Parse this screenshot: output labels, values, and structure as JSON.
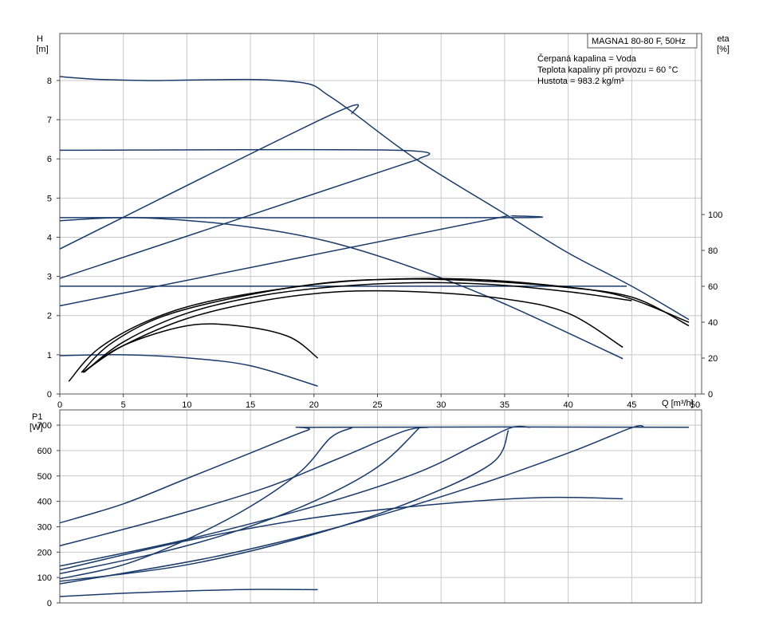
{
  "chart_data": [
    {
      "type": "line",
      "title": "MAGNA1 80-80 F, 50Hz",
      "info_lines": [
        "Čerpaná kapalina = Voda",
        "Teplota kapaliny při provozu = 60 °C",
        "Hustota = 983.2 kg/m³"
      ],
      "y_label_lines": [
        "H",
        "[m]"
      ],
      "y2_label_lines": [
        "eta",
        "[%]"
      ],
      "xlabel": "Q [m³/h]",
      "xlim": [
        0,
        50.5
      ],
      "ylim": [
        0,
        9.2
      ],
      "y2lim": [
        0,
        100
      ],
      "x_ticks": [
        0,
        5,
        10,
        15,
        20,
        25,
        30,
        35,
        40,
        45,
        50
      ],
      "y_ticks": [
        0,
        1,
        2,
        3,
        4,
        5,
        6,
        7,
        8
      ],
      "y2_ticks": [
        0,
        20,
        40,
        60,
        80,
        100
      ],
      "grid": true,
      "head_curves": [
        {
          "color": "#1a3a6b",
          "points": [
            [
              0,
              8.1
            ],
            [
              3,
              8.03
            ],
            [
              7,
              8.0
            ],
            [
              12,
              8.02
            ],
            [
              16,
              8.02
            ],
            [
              19.5,
              7.92
            ],
            [
              21,
              7.65
            ],
            [
              23,
              7.2
            ],
            [
              28,
              6.0
            ],
            [
              35,
              4.6
            ],
            [
              40,
              3.6
            ],
            [
              45,
              2.75
            ],
            [
              49.5,
              1.9
            ]
          ]
        },
        {
          "color": "#1a3a6b",
          "points": [
            [
              0,
              3.7
            ],
            [
              21.3,
              7.12
            ],
            [
              23,
              7.15
            ]
          ]
        },
        {
          "color": "#1a3a6b",
          "points": [
            [
              0,
              6.22
            ],
            [
              26.5,
              6.22
            ],
            [
              28.3,
              6.0
            ]
          ]
        },
        {
          "color": "#1a3a6b",
          "points": [
            [
              0,
              2.95
            ],
            [
              28.3,
              6.0
            ]
          ]
        },
        {
          "color": "#1a3a6b",
          "points": [
            [
              0,
              4.5
            ],
            [
              35.3,
              4.5
            ],
            [
              35.5,
              4.55
            ]
          ]
        },
        {
          "color": "#1a3a6b",
          "points": [
            [
              0,
              2.25
            ],
            [
              35.3,
              4.55
            ]
          ]
        },
        {
          "color": "#1a3a6b",
          "points": [
            [
              0,
              2.75
            ],
            [
              44.6,
              2.75
            ]
          ]
        },
        {
          "color": "#1a3a6b",
          "points": [
            [
              0,
              4.42
            ],
            [
              6,
              4.5
            ],
            [
              14,
              4.3
            ],
            [
              21,
              3.9
            ],
            [
              28,
              3.2
            ],
            [
              35,
              2.3
            ],
            [
              44.3,
              0.9
            ]
          ]
        },
        {
          "color": "#1a3a6b",
          "points": [
            [
              0,
              0.98
            ],
            [
              5,
              1.0
            ],
            [
              10,
              0.92
            ],
            [
              15,
              0.72
            ],
            [
              20.3,
              0.2
            ]
          ]
        }
      ],
      "efficiency_curves": [
        {
          "color": "#000000",
          "points": [
            [
              0.7,
              7
            ],
            [
              3,
              25
            ],
            [
              7,
              41
            ],
            [
              12,
              52
            ],
            [
              20,
              61
            ],
            [
              26,
              64
            ],
            [
              32,
              64
            ],
            [
              38,
              61
            ],
            [
              44,
              55
            ],
            [
              49.5,
              40
            ]
          ]
        },
        {
          "color": "#000000",
          "points": [
            [
              1.7,
              12
            ],
            [
              4,
              28
            ],
            [
              8,
              43
            ],
            [
              14,
              54
            ],
            [
              21,
              62
            ],
            [
              27,
              64
            ],
            [
              33,
              63
            ],
            [
              39,
              60
            ],
            [
              45,
              54
            ],
            [
              49.5,
              38
            ]
          ]
        },
        {
          "color": "#000000",
          "points": [
            [
              1.9,
              12
            ],
            [
              5,
              29
            ],
            [
              10,
              45
            ],
            [
              16,
              55
            ],
            [
              22,
              60
            ],
            [
              28,
              62
            ],
            [
              34,
              61
            ],
            [
              40,
              57
            ],
            [
              45,
              52
            ]
          ]
        },
        {
          "color": "#000000",
          "points": [
            [
              2.2,
              14
            ],
            [
              5,
              27
            ],
            [
              10,
              42
            ],
            [
              16,
              52
            ],
            [
              22,
              57
            ],
            [
              28,
              57
            ],
            [
              35,
              53
            ],
            [
              40,
              45
            ],
            [
              44.3,
              26
            ]
          ]
        },
        {
          "color": "#000000",
          "points": [
            [
              1.8,
              12
            ],
            [
              5,
              27
            ],
            [
              10,
              38
            ],
            [
              14,
              38
            ],
            [
              18,
              32
            ],
            [
              20.3,
              20
            ]
          ]
        }
      ],
      "power_ylabel_lines": [
        "P1",
        "[W]"
      ],
      "power_ylim": [
        0,
        760
      ],
      "power_yticks": [
        0,
        100,
        200,
        300,
        400,
        500,
        600,
        700
      ],
      "power_curves": [
        {
          "color": "#1a3a6b",
          "points": [
            [
              0,
              315
            ],
            [
              5,
              390
            ],
            [
              10,
              490
            ],
            [
              15,
              590
            ],
            [
              19.5,
              680
            ],
            [
              21,
              692
            ],
            [
              49.5,
              692
            ]
          ]
        },
        {
          "color": "#1a3a6b",
          "points": [
            [
              0,
              95
            ],
            [
              5,
              150
            ],
            [
              10,
              250
            ],
            [
              15,
              380
            ],
            [
              19,
              520
            ],
            [
              21.3,
              650
            ],
            [
              23,
              690
            ]
          ]
        },
        {
          "color": "#1a3a6b",
          "points": [
            [
              0,
              225
            ],
            [
              8,
              330
            ],
            [
              16,
              450
            ],
            [
              22,
              570
            ],
            [
              27,
              675
            ],
            [
              29,
              692
            ]
          ]
        },
        {
          "color": "#1a3a6b",
          "points": [
            [
              0,
              115
            ],
            [
              8,
              200
            ],
            [
              14,
              285
            ],
            [
              20,
              400
            ],
            [
              25,
              535
            ],
            [
              28.3,
              690
            ]
          ]
        },
        {
          "color": "#1a3a6b",
          "points": [
            [
              0,
              145
            ],
            [
              10,
              250
            ],
            [
              20,
              380
            ],
            [
              28,
              510
            ],
            [
              33,
              630
            ],
            [
              35.5,
              690
            ],
            [
              37,
              692
            ]
          ]
        },
        {
          "color": "#1a3a6b",
          "points": [
            [
              0,
              85
            ],
            [
              10,
              150
            ],
            [
              20,
              270
            ],
            [
              28,
              405
            ],
            [
              34,
              550
            ],
            [
              35.3,
              680
            ]
          ]
        },
        {
          "color": "#1a3a6b",
          "points": [
            [
              0,
              75
            ],
            [
              12,
              180
            ],
            [
              22,
              300
            ],
            [
              32,
              450
            ],
            [
              40,
              590
            ],
            [
              45,
              690
            ],
            [
              46,
              692
            ]
          ]
        },
        {
          "color": "#1a3a6b",
          "points": [
            [
              0,
              130
            ],
            [
              10,
              245
            ],
            [
              20,
              335
            ],
            [
              30,
              390
            ],
            [
              38,
              415
            ],
            [
              44.3,
              410
            ]
          ]
        },
        {
          "color": "#1a3a6b",
          "points": [
            [
              0,
              25
            ],
            [
              5,
              38
            ],
            [
              10,
              47
            ],
            [
              15,
              53
            ],
            [
              20.3,
              52
            ]
          ]
        }
      ]
    }
  ]
}
